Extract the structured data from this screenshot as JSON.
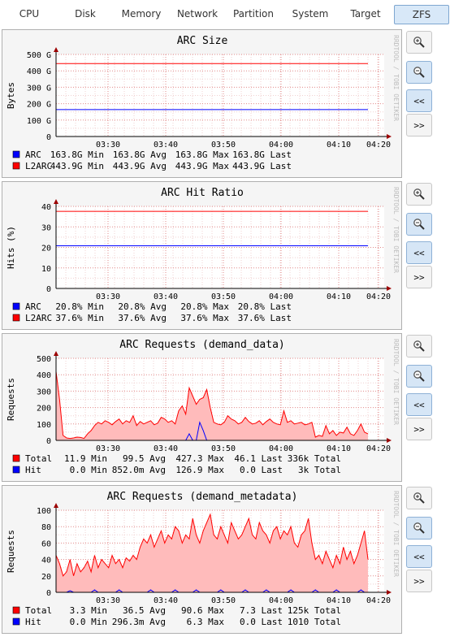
{
  "tabs": [
    {
      "label": "CPU",
      "active": false
    },
    {
      "label": "Disk",
      "active": false
    },
    {
      "label": "Memory",
      "active": false
    },
    {
      "label": "Network",
      "active": false
    },
    {
      "label": "Partition",
      "active": false
    },
    {
      "label": "System",
      "active": false
    },
    {
      "label": "Target",
      "active": false
    },
    {
      "label": "ZFS",
      "active": true
    }
  ],
  "watermark": "RRDTOOL / TOBI OETIKER",
  "side_buttons": {
    "zoom_in_icon": "magnifier-plus-icon",
    "zoom_out_icon": "magnifier-minus-icon",
    "back_label": "<<",
    "forward_label": ">>"
  },
  "chart_data": [
    {
      "type": "line",
      "title": "ARC Size",
      "ylabel": "Bytes",
      "xlabel": "",
      "x_ticks": [
        "03:30",
        "03:40",
        "03:50",
        "04:00",
        "04:10",
        "04:20"
      ],
      "y_ticks": [
        "0",
        "100 G",
        "200 G",
        "300 G",
        "400 G",
        "500 G"
      ],
      "ylim": [
        0,
        500
      ],
      "grid": true,
      "series": [
        {
          "name": "ARC",
          "color": "#0000ff",
          "values": [
            163.8,
            163.8
          ],
          "stats": [
            "163.8G Min",
            "163.8G Avg",
            "163.8G Max",
            "163.8G Last"
          ]
        },
        {
          "name": "L2ARC",
          "color": "#ff0000",
          "values": [
            443.9,
            443.9
          ],
          "stats": [
            "443.9G Min",
            "443.9G Avg",
            "443.9G Max",
            "443.9G Last"
          ]
        }
      ]
    },
    {
      "type": "line",
      "title": "ARC Hit Ratio",
      "ylabel": "Hits (%)",
      "xlabel": "",
      "x_ticks": [
        "03:30",
        "03:40",
        "03:50",
        "04:00",
        "04:10",
        "04:20"
      ],
      "y_ticks": [
        "0",
        "10",
        "20",
        "30",
        "40"
      ],
      "ylim": [
        0,
        40
      ],
      "grid": true,
      "series": [
        {
          "name": "ARC",
          "color": "#0000ff",
          "values": [
            20.8,
            20.8
          ],
          "stats": [
            "20.8% Min",
            "20.8% Avg",
            "20.8% Max",
            "20.8% Last"
          ]
        },
        {
          "name": "L2ARC",
          "color": "#ff0000",
          "values": [
            37.6,
            37.6
          ],
          "stats": [
            "37.6% Min",
            "37.6% Avg",
            "37.6% Max",
            "37.6% Last"
          ]
        }
      ]
    },
    {
      "type": "area",
      "title": "ARC Requests (demand_data)",
      "ylabel": "Requests",
      "xlabel": "",
      "x_ticks": [
        "03:30",
        "03:40",
        "03:50",
        "04:00",
        "04:10",
        "04:20"
      ],
      "y_ticks": [
        "0",
        "100",
        "200",
        "300",
        "400",
        "500"
      ],
      "ylim": [
        0,
        500
      ],
      "grid": true,
      "series": [
        {
          "name": "Total",
          "color": "#ff0000",
          "fill": "#ffbbbb",
          "values": [
            420,
            250,
            30,
            15,
            12,
            15,
            20,
            18,
            12,
            40,
            60,
            90,
            110,
            100,
            120,
            110,
            95,
            115,
            130,
            100,
            120,
            110,
            150,
            90,
            115,
            100,
            110,
            120,
            95,
            105,
            140,
            130,
            110,
            120,
            100,
            180,
            210,
            160,
            320,
            270,
            220,
            250,
            260,
            310,
            200,
            110,
            100,
            95,
            110,
            150,
            130,
            120,
            100,
            110,
            140,
            115,
            100,
            105,
            120,
            95,
            115,
            130,
            110,
            100,
            95,
            180,
            110,
            120,
            100,
            105,
            110,
            95,
            100,
            110,
            20,
            30,
            25,
            90,
            40,
            60,
            30,
            50,
            45,
            80,
            40,
            30,
            60,
            100,
            50,
            40
          ],
          "stats": [
            "11.9 Min",
            "99.5 Avg",
            "427.3 Max",
            "46.1 Last",
            "336k Total"
          ]
        },
        {
          "name": "Hit",
          "color": "#0000ff",
          "values": [
            0,
            0,
            0,
            0,
            0,
            0,
            0,
            0,
            0,
            0,
            0,
            0,
            0,
            0,
            0,
            0,
            0,
            0,
            0,
            0,
            0,
            0,
            0,
            0,
            0,
            0,
            0,
            0,
            0,
            0,
            0,
            0,
            0,
            0,
            0,
            0,
            0,
            0,
            40,
            0,
            0,
            110,
            60,
            0,
            0,
            0,
            0,
            0,
            0,
            0,
            0,
            0,
            0,
            0,
            0,
            0,
            0,
            0,
            0,
            0,
            0,
            0,
            0,
            0,
            0,
            0,
            0,
            0,
            0,
            0,
            0,
            0,
            0,
            0,
            0,
            0,
            0,
            0,
            0,
            0,
            0,
            0,
            0,
            0,
            0,
            0,
            0,
            0,
            0,
            0
          ],
          "stats": [
            "0.0 Min",
            "852.0m Avg",
            "126.9 Max",
            "0.0 Last",
            "3k Total"
          ]
        }
      ]
    },
    {
      "type": "area",
      "title": "ARC Requests (demand_metadata)",
      "ylabel": "Requests",
      "xlabel": "",
      "x_ticks": [
        "03:30",
        "03:40",
        "03:50",
        "04:00",
        "04:10",
        "04:20"
      ],
      "y_ticks": [
        "0",
        "20",
        "40",
        "60",
        "80",
        "100"
      ],
      "ylim": [
        0,
        100
      ],
      "grid": true,
      "series": [
        {
          "name": "Total",
          "color": "#ff0000",
          "fill": "#ffbbbb",
          "values": [
            45,
            35,
            20,
            25,
            40,
            20,
            35,
            25,
            30,
            38,
            25,
            45,
            30,
            40,
            35,
            30,
            45,
            35,
            40,
            30,
            42,
            38,
            45,
            40,
            55,
            65,
            60,
            70,
            55,
            65,
            75,
            60,
            70,
            65,
            80,
            75,
            60,
            70,
            65,
            90,
            70,
            60,
            75,
            85,
            95,
            70,
            65,
            80,
            70,
            60,
            85,
            75,
            65,
            70,
            80,
            90,
            70,
            65,
            85,
            75,
            70,
            60,
            75,
            80,
            65,
            75,
            70,
            80,
            60,
            55,
            70,
            75,
            90,
            60,
            40,
            45,
            35,
            50,
            40,
            30,
            45,
            35,
            55,
            40,
            50,
            35,
            45,
            60,
            75,
            40
          ],
          "stats": [
            "3.3 Min",
            "36.5 Avg",
            "90.6 Max",
            "7.3 Last",
            "125k Total"
          ]
        },
        {
          "name": "Hit",
          "color": "#0000ff",
          "values": [
            0,
            0,
            0,
            0,
            2,
            0,
            0,
            0,
            0,
            0,
            0,
            3,
            0,
            0,
            0,
            0,
            0,
            0,
            3,
            0,
            0,
            0,
            0,
            0,
            0,
            0,
            0,
            3,
            0,
            0,
            0,
            0,
            0,
            0,
            3,
            0,
            0,
            0,
            0,
            0,
            3,
            0,
            0,
            0,
            0,
            0,
            0,
            3,
            0,
            0,
            0,
            0,
            0,
            0,
            3,
            0,
            0,
            0,
            0,
            0,
            3,
            0,
            0,
            0,
            0,
            0,
            0,
            3,
            0,
            0,
            0,
            0,
            0,
            0,
            3,
            0,
            0,
            0,
            0,
            0,
            3,
            0,
            0,
            0,
            0,
            0,
            0,
            3,
            0,
            0
          ],
          "stats": [
            "0.0 Min",
            "296.3m Avg",
            "6.3 Max",
            "0.0 Last",
            "1010 Total"
          ]
        }
      ]
    }
  ]
}
